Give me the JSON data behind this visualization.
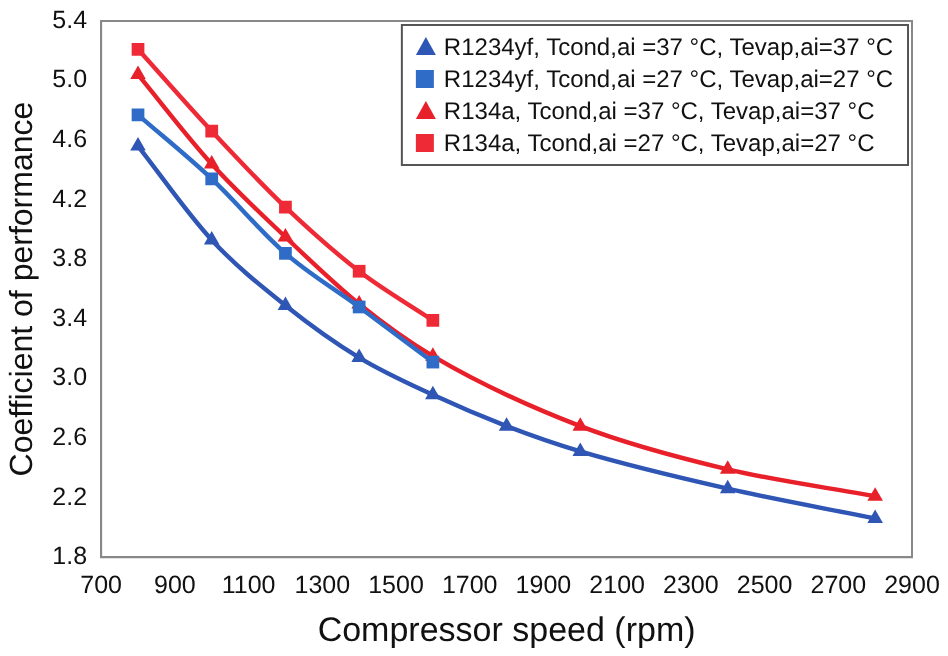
{
  "chart_data": {
    "type": "line",
    "xlabel": "Compressor speed (rpm)",
    "ylabel": "Coefficient of performance",
    "xlim": [
      700,
      2900
    ],
    "xticks": [
      700,
      900,
      1100,
      1300,
      1500,
      1700,
      1900,
      2100,
      2300,
      2500,
      2700,
      2900
    ],
    "ylim": [
      1.8,
      5.4
    ],
    "yticks": [
      1.8,
      2.2,
      2.6,
      {
        "value": 3,
        "label": "3.0"
      },
      3.4,
      3.8,
      4.2,
      4.6,
      {
        "value": 5,
        "label": "5.0"
      },
      5.4
    ],
    "grid": false,
    "legend": "top right",
    "series": [
      {
        "name": "R1234yf, Tcond,ai =37 °C, Tevap,ai=37 °C",
        "color": "#2f56b4",
        "marker": "triangle",
        "x": [
          800,
          1000,
          1200,
          1400,
          1600,
          1800,
          2000,
          2400,
          2800
        ],
        "values": [
          4.56,
          3.93,
          3.49,
          3.14,
          2.89,
          2.68,
          2.51,
          2.26,
          2.06
        ]
      },
      {
        "name": "R1234yf, Tcond,ai =27 °C, Tevap,ai=27 °C",
        "color": "#2f6cc8",
        "marker": "square",
        "x": [
          800,
          1000,
          1200,
          1400,
          1600
        ],
        "values": [
          4.77,
          4.34,
          3.84,
          3.48,
          3.11
        ]
      },
      {
        "name": "R134a, Tcond,ai =37 °C, Tevap,ai=37 °C",
        "color": "#e8202a",
        "marker": "triangle",
        "x": [
          800,
          1000,
          1200,
          1400,
          1600,
          2000,
          2400,
          2800
        ],
        "values": [
          5.04,
          4.44,
          3.95,
          3.5,
          3.15,
          2.68,
          2.39,
          2.21
        ]
      },
      {
        "name": "R134a, Tcond,ai =27 °C, Tevap,ai=27 °C",
        "color": "#ee2a36",
        "marker": "square",
        "x": [
          800,
          1000,
          1200,
          1400,
          1600
        ],
        "values": [
          5.21,
          4.66,
          4.15,
          3.72,
          3.39
        ]
      }
    ]
  }
}
